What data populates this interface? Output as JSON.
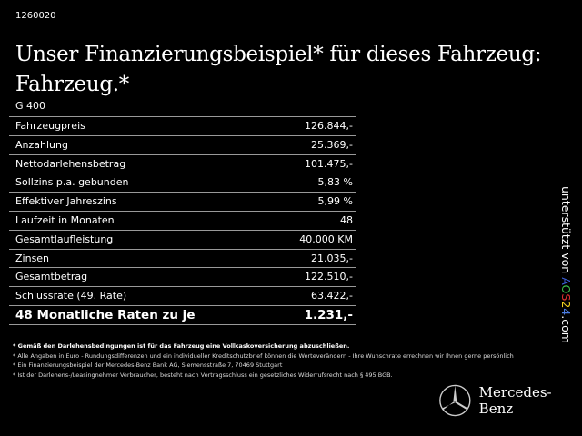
{
  "code": "1260020",
  "title": "Unser Finanzierungsbeispiel* für dieses Fahrzeug: Fahrzeug.*",
  "model": "G 400",
  "rows": [
    {
      "label": "Fahrzeugpreis",
      "value": "126.844,-"
    },
    {
      "label": "Anzahlung",
      "value": "25.369,-"
    },
    {
      "label": "Nettodarlehensbetrag",
      "value": "101.475,-"
    },
    {
      "label": "Sollzins p.a. gebunden",
      "value": "5,83 %"
    },
    {
      "label": "Effektiver Jahreszins",
      "value": "5,99 %"
    },
    {
      "label": "Laufzeit in Monaten",
      "value": "48"
    },
    {
      "label": "Gesamtlaufleistung",
      "value": "40.000 KM"
    },
    {
      "label": "Zinsen",
      "value": "21.035,-"
    },
    {
      "label": "Gesamtbetrag",
      "value": "122.510,-"
    },
    {
      "label": "Schlussrate (49. Rate)",
      "value": "63.422,-"
    }
  ],
  "total": {
    "label": "48 Monatliche Raten zu je",
    "value": "1.231,-"
  },
  "notes": [
    "* Gemäß den Darlehensbedingungen ist für das Fahrzeug eine Vollkaskoversicherung abzuschließen.",
    "* Alle Angaben in Euro - Rundungsdifferenzen und ein individueller Kreditschutzbrief können die Werteverändern - Ihre Wunschrate errechnen wir Ihnen gerne persönlich",
    "* Ein Finanzierungsbeispiel der Mercedes-Benz Bank AG, Siemensstraße 7, 70469 Stuttgart",
    "* Ist der Darlehens-/Leasingnehmer Verbraucher, besteht nach Vertragsschluss ein gesetzliches Widerrufsrecht nach § 495 BGB."
  ],
  "side": {
    "prefix": "unterstützt von ",
    "a": "A",
    "o": "O",
    "s": "S",
    "two": "2",
    "four": "4",
    "suffix": ".com"
  },
  "brand": "Mercedes-Benz",
  "colors": {
    "a": "#3a5bd0",
    "o": "#3bbf4a",
    "s": "#e03030",
    "two": "#f0d020",
    "four": "#4a7be0"
  }
}
